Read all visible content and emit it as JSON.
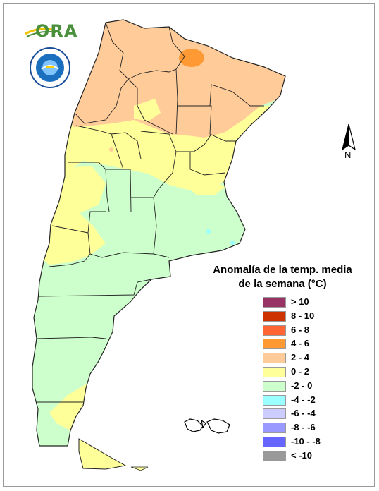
{
  "logo": {
    "ora_text": "ORA"
  },
  "seal": {
    "name": "smn-seal"
  },
  "north_arrow": {
    "label": "N"
  },
  "legend": {
    "title_line1": "Anomalía de la temp. media",
    "title_line2": "de la semana (°C)",
    "classes": [
      {
        "label": "> 10",
        "color": "#993366"
      },
      {
        "label": "8 - 10",
        "color": "#cc3300"
      },
      {
        "label": "6 - 8",
        "color": "#ff6633"
      },
      {
        "label": "4 - 6",
        "color": "#ff9933"
      },
      {
        "label": "2 - 4",
        "color": "#ffcc99"
      },
      {
        "label": "0 - 2",
        "color": "#ffff99"
      },
      {
        "label": "-2 - 0",
        "color": "#ccffcc"
      },
      {
        "label": "-4 - -2",
        "color": "#99ffff"
      },
      {
        "label": "-6 - -4",
        "color": "#ccccff"
      },
      {
        "label": "-8 - -6",
        "color": "#9999ff"
      },
      {
        "label": "-10 - -8",
        "color": "#6666ff"
      },
      {
        "label": "< -10",
        "color": "#999999"
      }
    ]
  }
}
